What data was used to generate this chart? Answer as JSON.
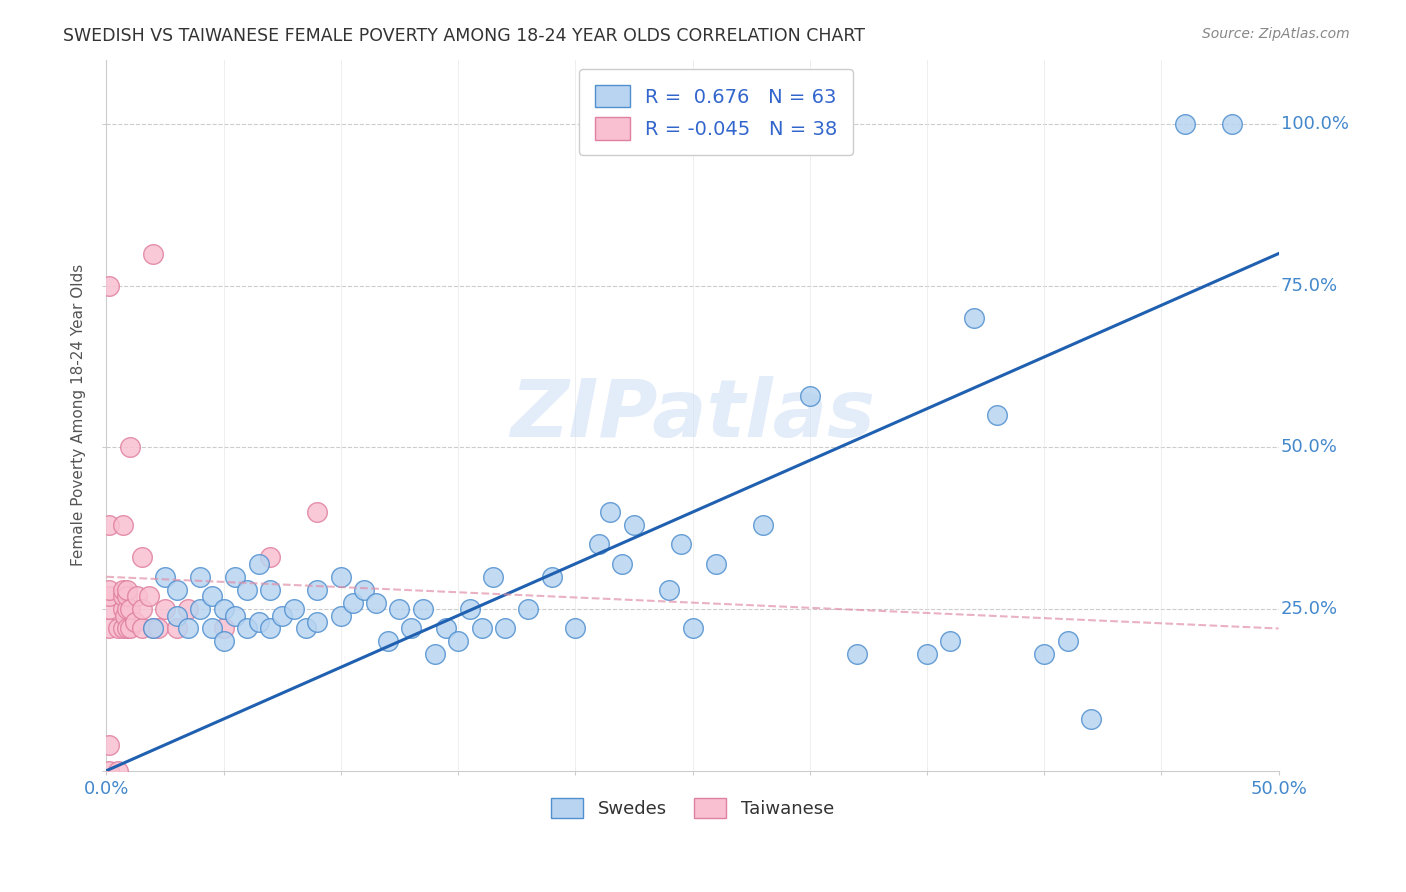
{
  "title": "SWEDISH VS TAIWANESE FEMALE POVERTY AMONG 18-24 YEAR OLDS CORRELATION CHART",
  "source": "Source: ZipAtlas.com",
  "xlim": [
    0.0,
    0.5
  ],
  "ylim": [
    0.0,
    1.1
  ],
  "swedes_R": 0.676,
  "swedes_N": 63,
  "taiwanese_R": -0.045,
  "taiwanese_N": 38,
  "swedes_color": "#b8d4f0",
  "swedes_edge_color": "#5090d0",
  "swedes_line_color": "#2060b0",
  "taiwanese_color": "#f8c0d0",
  "taiwanese_edge_color": "#e080a0",
  "taiwanese_line_color": "#e090a8",
  "watermark_text": "ZIPatlas",
  "ylabel": "Female Poverty Among 18-24 Year Olds",
  "swedes_x": [
    0.02,
    0.025,
    0.03,
    0.03,
    0.035,
    0.04,
    0.04,
    0.045,
    0.045,
    0.05,
    0.05,
    0.055,
    0.055,
    0.06,
    0.06,
    0.065,
    0.065,
    0.07,
    0.07,
    0.075,
    0.08,
    0.085,
    0.09,
    0.09,
    0.1,
    0.1,
    0.105,
    0.11,
    0.115,
    0.12,
    0.125,
    0.13,
    0.135,
    0.14,
    0.145,
    0.15,
    0.155,
    0.16,
    0.165,
    0.17,
    0.18,
    0.19,
    0.2,
    0.21,
    0.215,
    0.22,
    0.225,
    0.24,
    0.245,
    0.25,
    0.26,
    0.28,
    0.3,
    0.32,
    0.35,
    0.36,
    0.37,
    0.38,
    0.4,
    0.41,
    0.42,
    0.46,
    0.48
  ],
  "swedes_y": [
    0.22,
    0.3,
    0.24,
    0.28,
    0.22,
    0.25,
    0.3,
    0.22,
    0.27,
    0.2,
    0.25,
    0.24,
    0.3,
    0.22,
    0.28,
    0.23,
    0.32,
    0.22,
    0.28,
    0.24,
    0.25,
    0.22,
    0.23,
    0.28,
    0.24,
    0.3,
    0.26,
    0.28,
    0.26,
    0.2,
    0.25,
    0.22,
    0.25,
    0.18,
    0.22,
    0.2,
    0.25,
    0.22,
    0.3,
    0.22,
    0.25,
    0.3,
    0.22,
    0.35,
    0.4,
    0.32,
    0.38,
    0.28,
    0.35,
    0.22,
    0.32,
    0.38,
    0.58,
    0.18,
    0.18,
    0.2,
    0.7,
    0.55,
    0.18,
    0.2,
    0.08,
    1.0,
    1.0
  ],
  "taiwanese_x": [
    0.001,
    0.001,
    0.001,
    0.001,
    0.001,
    0.001,
    0.001,
    0.001,
    0.005,
    0.005,
    0.007,
    0.007,
    0.007,
    0.007,
    0.007,
    0.008,
    0.009,
    0.009,
    0.009,
    0.009,
    0.01,
    0.01,
    0.01,
    0.012,
    0.013,
    0.015,
    0.015,
    0.015,
    0.018,
    0.02,
    0.02,
    0.022,
    0.025,
    0.03,
    0.035,
    0.05,
    0.07,
    0.09
  ],
  "taiwanese_y": [
    0.0,
    0.04,
    0.22,
    0.25,
    0.27,
    0.28,
    0.38,
    0.75,
    0.0,
    0.22,
    0.22,
    0.25,
    0.27,
    0.28,
    0.38,
    0.24,
    0.22,
    0.25,
    0.27,
    0.28,
    0.22,
    0.25,
    0.5,
    0.23,
    0.27,
    0.22,
    0.25,
    0.33,
    0.27,
    0.22,
    0.8,
    0.22,
    0.25,
    0.22,
    0.25,
    0.22,
    0.33,
    0.4
  ],
  "grid_color": "#cccccc",
  "tick_color": "#4488cc",
  "title_color": "#333333",
  "source_color": "#888888"
}
